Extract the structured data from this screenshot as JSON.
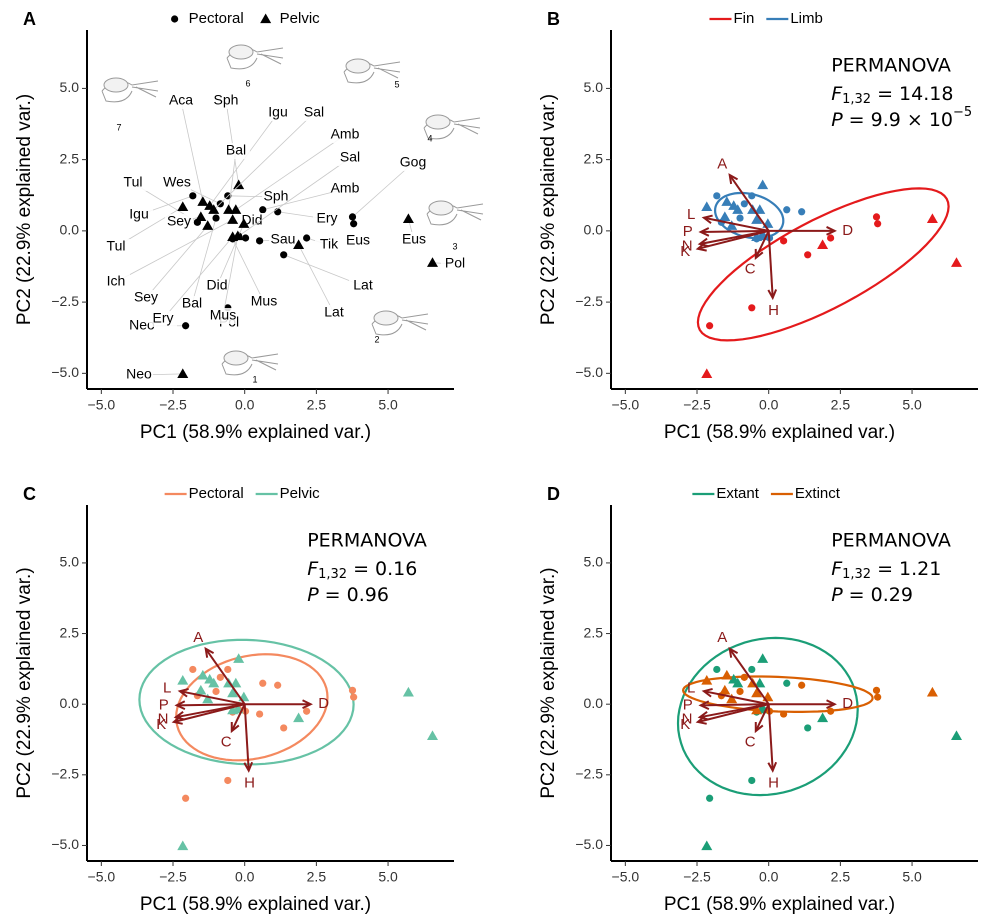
{
  "chart_data": [
    {
      "type": "scatter",
      "panel": "A",
      "xlabel": "PC1 (58.9% explained var.)",
      "ylabel": "PC2 (22.9% explained var.)",
      "xlim": [
        -5.5,
        7.3
      ],
      "ylim": [
        -5.55,
        7.05
      ],
      "xticks": [
        {
          "value": -5,
          "label": "−5.0"
        },
        {
          "value": -2.5,
          "label": "−2.5"
        },
        {
          "value": 0,
          "label": "0.0"
        },
        2.5,
        {
          "value": 5,
          "label": "5.0"
        }
      ],
      "yticks": [
        {
          "value": -5,
          "label": "−5.0"
        },
        {
          "value": -2.5,
          "label": "−2.5"
        },
        {
          "value": 0,
          "label": "0.0"
        },
        2.5,
        {
          "value": 5,
          "label": "5.0"
        }
      ],
      "legend": "top",
      "ellipse": false,
      "figure_labels": [
        "1",
        "2",
        "3",
        "4",
        "5",
        "6",
        "7"
      ],
      "series": [
        {
          "name": "Pectoral",
          "color": "#000000",
          "marker": "circle",
          "x": [
            -1.81,
            -0.59,
            0.63,
            1.15,
            2.16,
            1.36,
            0.52,
            0.03,
            -0.42,
            3.76,
            3.8,
            -0.59,
            -2.06,
            -0.21,
            -1.0,
            -0.85,
            -1.65
          ],
          "values": [
            1.23,
            1.23,
            0.74,
            0.67,
            -0.25,
            -0.84,
            -0.35,
            -0.25,
            -0.28,
            0.49,
            0.25,
            -2.7,
            -3.33,
            -0.18,
            0.45,
            0.95,
            0.3
          ],
          "point_labels": [
            "Igu",
            "Sph",
            "Amb",
            "Ery",
            "Tik",
            "Lat",
            "Sau",
            "Did",
            "Mus",
            "Gog",
            "Eus",
            "Pol",
            "Neo",
            "Sal",
            "Bal",
            "Wes",
            "Tul"
          ]
        },
        {
          "name": "Pelvic",
          "color": "#000000",
          "marker": "triangle",
          "x": [
            -0.21,
            -2.16,
            -1.46,
            -1.22,
            -1.08,
            -1.53,
            -1.29,
            -0.56,
            -0.31,
            -0.42,
            -0.03,
            -0.24,
            -0.42,
            1.88,
            5.71,
            6.55,
            -2.16
          ],
          "values": [
            1.61,
            0.84,
            1.02,
            0.88,
            0.74,
            0.49,
            0.18,
            0.74,
            0.74,
            0.39,
            0.25,
            -0.18,
            -0.21,
            -0.49,
            0.42,
            -1.12,
            -5.02
          ],
          "point_labels": [
            "Sph",
            "Tul",
            "Aca",
            "Igu",
            "Sal",
            "Sey",
            "Sey",
            "Bal",
            "Amb",
            "Ich",
            "Did",
            "Mus",
            "Ery",
            "Lat",
            "Eus",
            "Pol",
            "Neo"
          ]
        }
      ]
    },
    {
      "type": "scatter",
      "panel": "B",
      "xlabel": "PC1 (58.9% explained var.)",
      "ylabel": "PC2 (22.9% explained var.)",
      "xlim": [
        -5.5,
        7.3
      ],
      "ylim": [
        -5.55,
        7.05
      ],
      "xticks": [
        {
          "value": -5,
          "label": "−5.0"
        },
        {
          "value": -2.5,
          "label": "−2.5"
        },
        {
          "value": 0,
          "label": "0.0"
        },
        2.5,
        {
          "value": 5,
          "label": "5.0"
        }
      ],
      "yticks": [
        {
          "value": -5,
          "label": "−5.0"
        },
        {
          "value": -2.5,
          "label": "−2.5"
        },
        {
          "value": 0,
          "label": "0.0"
        },
        2.5,
        {
          "value": 5,
          "label": "5.0"
        }
      ],
      "legend": "top",
      "ellipse": true,
      "loading_color": "#8b1a1a",
      "permanova": {
        "title": "PERMANOVA",
        "f": "F",
        "f_df": "1,32",
        "f_text": "= 14.18",
        "p": "P",
        "p_text": "= 9.9 × 10",
        "p_exp": "−5"
      },
      "loadings": [
        {
          "label": "A",
          "x": -1.36,
          "y": 1.96
        },
        {
          "label": "C",
          "x": -0.45,
          "y": -0.95
        },
        {
          "label": "D",
          "x": 2.3,
          "y": 0.0
        },
        {
          "label": "H",
          "x": 0.14,
          "y": -2.35
        },
        {
          "label": "K",
          "x": -2.47,
          "y": -0.63
        },
        {
          "label": "N",
          "x": -2.4,
          "y": -0.46
        },
        {
          "label": "P",
          "x": -2.37,
          "y": -0.04
        },
        {
          "label": "L",
          "x": -2.26,
          "y": 0.46
        }
      ],
      "series": [
        {
          "name": "Fin",
          "color": "#e41a1c",
          "x": [
            2.16,
            1.36,
            0.52,
            3.76,
            3.8,
            -0.59,
            -2.06,
            1.88,
            5.71,
            6.55,
            -2.16
          ],
          "values": [
            -0.25,
            -0.84,
            -0.35,
            0.49,
            0.25,
            -2.7,
            -3.33,
            -0.49,
            0.42,
            -1.12,
            -5.02
          ],
          "markers": [
            "circle",
            "circle",
            "circle",
            "circle",
            "circle",
            "circle",
            "circle",
            "triangle",
            "triangle",
            "triangle",
            "triangle"
          ]
        },
        {
          "name": "Limb",
          "color": "#377eb8",
          "x": [
            -1.81,
            -0.59,
            0.63,
            1.15,
            0.03,
            -0.42,
            -0.21,
            -1.0,
            -0.85,
            -1.65,
            -0.21,
            -2.16,
            -1.46,
            -1.22,
            -1.08,
            -1.53,
            -1.29,
            -0.56,
            -0.31,
            -0.42,
            -0.03,
            -0.24,
            -0.42
          ],
          "values": [
            1.23,
            1.23,
            0.74,
            0.67,
            -0.25,
            -0.28,
            -0.18,
            0.45,
            0.95,
            0.3,
            1.61,
            0.84,
            1.02,
            0.88,
            0.74,
            0.49,
            0.18,
            0.74,
            0.74,
            0.39,
            0.25,
            -0.18,
            -0.21
          ],
          "markers": [
            "circle",
            "circle",
            "circle",
            "circle",
            "circle",
            "circle",
            "circle",
            "circle",
            "circle",
            "circle",
            "triangle",
            "triangle",
            "triangle",
            "triangle",
            "triangle",
            "triangle",
            "triangle",
            "triangle",
            "triangle",
            "triangle",
            "triangle",
            "triangle",
            "triangle"
          ]
        }
      ]
    },
    {
      "type": "scatter",
      "panel": "C",
      "xlabel": "PC1 (58.9% explained var.)",
      "ylabel": "PC2 (22.9% explained var.)",
      "xlim": [
        -5.5,
        7.3
      ],
      "ylim": [
        -5.55,
        7.05
      ],
      "xticks": [
        {
          "value": -5,
          "label": "−5.0"
        },
        {
          "value": -2.5,
          "label": "−2.5"
        },
        {
          "value": 0,
          "label": "0.0"
        },
        2.5,
        {
          "value": 5,
          "label": "5.0"
        }
      ],
      "yticks": [
        {
          "value": -5,
          "label": "−5.0"
        },
        {
          "value": -2.5,
          "label": "−2.5"
        },
        {
          "value": 0,
          "label": "0.0"
        },
        2.5,
        {
          "value": 5,
          "label": "5.0"
        }
      ],
      "legend": "top",
      "ellipse": true,
      "loading_color": "#8b1a1a",
      "permanova": {
        "title": "PERMANOVA",
        "f": "F",
        "f_df": "1,32",
        "f_text": "= 0.16",
        "p": "P",
        "p_text": "= 0.96"
      },
      "loadings": [
        {
          "label": "A",
          "x": -1.36,
          "y": 1.96
        },
        {
          "label": "C",
          "x": -0.45,
          "y": -0.95
        },
        {
          "label": "D",
          "x": 2.3,
          "y": 0.0
        },
        {
          "label": "H",
          "x": 0.14,
          "y": -2.35
        },
        {
          "label": "K",
          "x": -2.47,
          "y": -0.63
        },
        {
          "label": "N",
          "x": -2.4,
          "y": -0.46
        },
        {
          "label": "P",
          "x": -2.37,
          "y": -0.04
        },
        {
          "label": "L",
          "x": -2.26,
          "y": 0.46
        }
      ],
      "series": [
        {
          "name": "Pectoral",
          "color": "#f4895f",
          "marker": "circle",
          "x": [
            -1.81,
            -0.59,
            0.63,
            1.15,
            2.16,
            1.36,
            0.52,
            0.03,
            -0.42,
            3.76,
            3.8,
            -0.59,
            -2.06,
            -0.21,
            -1.0,
            -0.85,
            -1.65
          ],
          "values": [
            1.23,
            1.23,
            0.74,
            0.67,
            -0.25,
            -0.84,
            -0.35,
            -0.25,
            -0.28,
            0.49,
            0.25,
            -2.7,
            -3.33,
            -0.18,
            0.45,
            0.95,
            0.3
          ]
        },
        {
          "name": "Pelvic",
          "color": "#66c2a5",
          "marker": "triangle",
          "x": [
            -0.21,
            -2.16,
            -1.46,
            -1.22,
            -1.08,
            -1.53,
            -1.29,
            -0.56,
            -0.31,
            -0.42,
            -0.03,
            -0.24,
            -0.42,
            1.88,
            5.71,
            6.55,
            -2.16
          ],
          "values": [
            1.61,
            0.84,
            1.02,
            0.88,
            0.74,
            0.49,
            0.18,
            0.74,
            0.74,
            0.39,
            0.25,
            -0.18,
            -0.21,
            -0.49,
            0.42,
            -1.12,
            -5.02
          ]
        }
      ]
    },
    {
      "type": "scatter",
      "panel": "D",
      "xlabel": "PC1 (58.9% explained var.)",
      "ylabel": "PC2 (22.9% explained var.)",
      "xlim": [
        -5.5,
        7.3
      ],
      "ylim": [
        -5.55,
        7.05
      ],
      "xticks": [
        {
          "value": -5,
          "label": "−5.0"
        },
        {
          "value": -2.5,
          "label": "−2.5"
        },
        {
          "value": 0,
          "label": "0.0"
        },
        2.5,
        {
          "value": 5,
          "label": "5.0"
        }
      ],
      "yticks": [
        {
          "value": -5,
          "label": "−5.0"
        },
        {
          "value": -2.5,
          "label": "−2.5"
        },
        {
          "value": 0,
          "label": "0.0"
        },
        2.5,
        {
          "value": 5,
          "label": "5.0"
        }
      ],
      "legend": "top",
      "ellipse": true,
      "loading_color": "#8b1a1a",
      "permanova": {
        "title": "PERMANOVA",
        "f": "F",
        "f_df": "1,32",
        "f_text": "= 1.21",
        "p": "P",
        "p_text": "= 0.29"
      },
      "loadings": [
        {
          "label": "A",
          "x": -1.36,
          "y": 1.96
        },
        {
          "label": "C",
          "x": -0.45,
          "y": -0.95
        },
        {
          "label": "D",
          "x": 2.3,
          "y": 0.0
        },
        {
          "label": "H",
          "x": 0.14,
          "y": -2.35
        },
        {
          "label": "K",
          "x": -2.47,
          "y": -0.63
        },
        {
          "label": "N",
          "x": -2.4,
          "y": -0.46
        },
        {
          "label": "P",
          "x": -2.37,
          "y": -0.04
        },
        {
          "label": "L",
          "x": -2.26,
          "y": 0.46
        }
      ],
      "series": [
        {
          "name": "Extant",
          "color": "#1b9e77",
          "x": [
            -1.81,
            -0.59,
            0.63,
            1.36,
            -0.42,
            -0.59,
            -2.06,
            -0.21,
            -0.21,
            -1.22,
            -1.08,
            -0.31,
            -0.24,
            1.88,
            6.55,
            -2.16
          ],
          "values": [
            1.23,
            1.23,
            0.74,
            -0.84,
            -0.28,
            -2.7,
            -3.33,
            -0.18,
            1.61,
            0.88,
            0.74,
            0.74,
            -0.18,
            -0.49,
            -1.12,
            -5.02
          ],
          "markers": [
            "circle",
            "circle",
            "circle",
            "circle",
            "circle",
            "circle",
            "circle",
            "circle",
            "triangle",
            "triangle",
            "triangle",
            "triangle",
            "triangle",
            "triangle",
            "triangle",
            "triangle"
          ]
        },
        {
          "name": "Extinct",
          "color": "#d95f02",
          "x": [
            1.15,
            2.16,
            0.52,
            0.03,
            3.76,
            3.8,
            -1.0,
            -0.85,
            -1.65,
            -2.16,
            -1.46,
            -1.53,
            -1.29,
            -0.56,
            -0.42,
            -0.03,
            -0.42,
            5.71
          ],
          "values": [
            0.67,
            -0.25,
            -0.35,
            -0.25,
            0.49,
            0.25,
            0.45,
            0.95,
            0.3,
            0.84,
            1.02,
            0.49,
            0.18,
            0.74,
            0.39,
            0.25,
            -0.21,
            0.42
          ],
          "markers": [
            "circle",
            "circle",
            "circle",
            "circle",
            "circle",
            "circle",
            "circle",
            "circle",
            "circle",
            "triangle",
            "triangle",
            "triangle",
            "triangle",
            "triangle",
            "triangle",
            "triangle",
            "triangle",
            "triangle"
          ]
        }
      ]
    }
  ]
}
